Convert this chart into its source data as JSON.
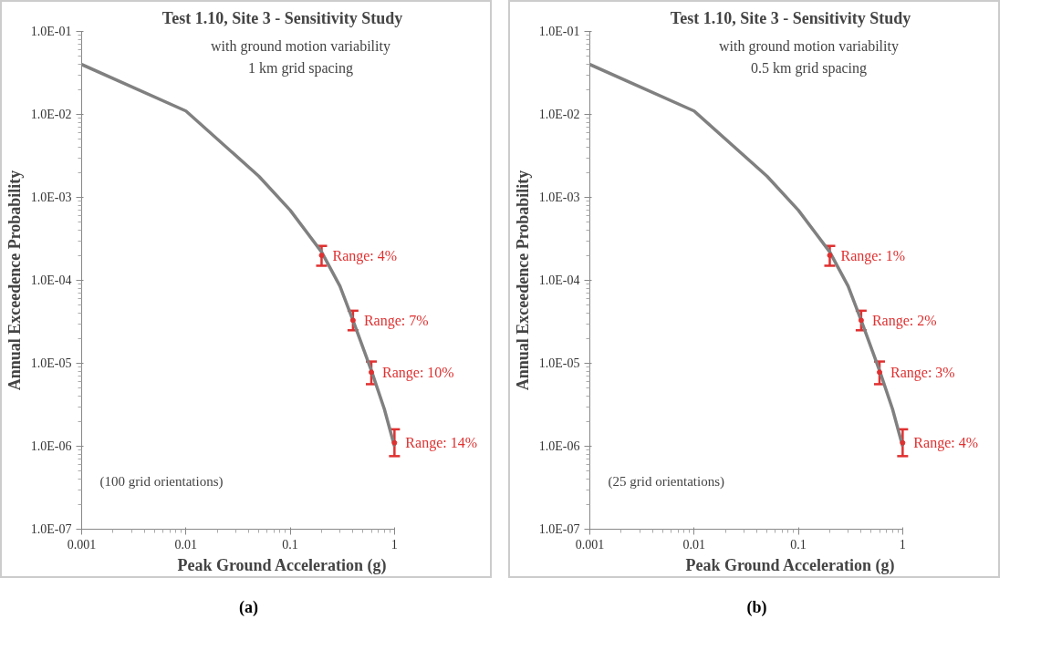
{
  "chart_data": [
    {
      "type": "line",
      "title": "Test 1.10, Site 3 - Sensitivity Study",
      "subtitle": "with ground motion variability\n1 km grid spacing",
      "xlabel": "Peak Ground Acceleration (g)",
      "ylabel": "Annual Exceedence Probability",
      "log": "xy",
      "grid": false,
      "marker": "none",
      "line_style": "solid",
      "xlim": [
        0.001,
        1
      ],
      "xticks": [
        0.001,
        0.01,
        0.1,
        1
      ],
      "ylim": [
        1e-07,
        0.1
      ],
      "yticks": [
        {
          "value": 1e-07,
          "label": "1.0E-07"
        },
        {
          "value": 1e-06,
          "label": "1.0E-06"
        },
        {
          "value": 1e-05,
          "label": "1.0E-05"
        },
        {
          "value": 0.0001,
          "label": "1.0E-04"
        },
        {
          "value": 0.001,
          "label": "1.0E-03"
        },
        {
          "value": 0.01,
          "label": "1.0E-02"
        },
        {
          "value": 0.1,
          "label": "1.0E-01"
        }
      ],
      "series": [
        {
          "color": "#808080",
          "x": [
            0.001,
            0.01,
            0.05,
            0.1,
            0.2,
            0.3,
            0.4,
            0.6,
            0.8,
            1
          ],
          "values": [
            0.04,
            0.011,
            0.0018,
            0.0007,
            0.00022,
            8.5e-05,
            3.3e-05,
            8.2e-06,
            2.8e-06,
            1e-06
          ]
        },
        {
          "type": "scatter",
          "marker": "circle",
          "color": "#e03030",
          "x": [
            0.2,
            0.4,
            0.6,
            1
          ],
          "values": [
            0.0002,
            3.3e-05,
            7.8e-06,
            1.1e-06
          ],
          "errors": [
            [
              0.00015,
              0.00026
            ],
            [
              2.5e-05,
              4.3e-05
            ],
            [
              5.6e-06,
              1.05e-05
            ],
            [
              7.6e-07,
              1.6e-06
            ]
          ]
        }
      ],
      "annotations": [
        "(100 grid orientations)",
        "(a)",
        {
          "text": "Range: 4%",
          "x": 0.2,
          "y": 0.0002
        },
        {
          "text": "Range: 7%",
          "x": 0.4,
          "y": 3.3e-05
        },
        {
          "text": "Range: 10%",
          "x": 0.6,
          "y": 7.8e-06
        },
        {
          "text": "Range: 14%",
          "x": 1,
          "y": 1.1e-06
        }
      ]
    },
    {
      "type": "line",
      "title": "Test 1.10, Site 3 - Sensitivity Study",
      "subtitle": "with ground motion variability\n0.5 km grid spacing",
      "xlabel": "Peak Ground Acceleration (g)",
      "ylabel": "Annual Exceedence Probability",
      "log": "xy",
      "grid": false,
      "marker": "none",
      "line_style": "solid",
      "xlim": [
        0.001,
        1
      ],
      "xticks": [
        0.001,
        0.01,
        0.1,
        1
      ],
      "ylim": [
        1e-07,
        0.1
      ],
      "yticks": [
        {
          "value": 1e-07,
          "label": "1.0E-07"
        },
        {
          "value": 1e-06,
          "label": "1.0E-06"
        },
        {
          "value": 1e-05,
          "label": "1.0E-05"
        },
        {
          "value": 0.0001,
          "label": "1.0E-04"
        },
        {
          "value": 0.001,
          "label": "1.0E-03"
        },
        {
          "value": 0.01,
          "label": "1.0E-02"
        },
        {
          "value": 0.1,
          "label": "1.0E-01"
        }
      ],
      "series": [
        {
          "color": "#808080",
          "x": [
            0.001,
            0.01,
            0.05,
            0.1,
            0.2,
            0.3,
            0.4,
            0.6,
            0.8,
            1
          ],
          "values": [
            0.04,
            0.011,
            0.0018,
            0.0007,
            0.00022,
            8.5e-05,
            3.3e-05,
            8.2e-06,
            2.8e-06,
            1e-06
          ]
        },
        {
          "type": "scatter",
          "marker": "circle",
          "color": "#e03030",
          "x": [
            0.2,
            0.4,
            0.6,
            1
          ],
          "values": [
            0.0002,
            3.3e-05,
            7.8e-06,
            1.1e-06
          ],
          "errors": [
            [
              0.00015,
              0.00026
            ],
            [
              2.5e-05,
              4.3e-05
            ],
            [
              5.6e-06,
              1.05e-05
            ],
            [
              7.6e-07,
              1.6e-06
            ]
          ]
        }
      ],
      "annotations": [
        "(25 grid orientations)",
        "(b)",
        {
          "text": "Range: 1%",
          "x": 0.2,
          "y": 0.0002
        },
        {
          "text": "Range: 2%",
          "x": 0.4,
          "y": 3.3e-05
        },
        {
          "text": "Range: 3%",
          "x": 0.6,
          "y": 7.8e-06
        },
        {
          "text": "Range: 4%",
          "x": 1,
          "y": 1.1e-06
        }
      ]
    }
  ]
}
